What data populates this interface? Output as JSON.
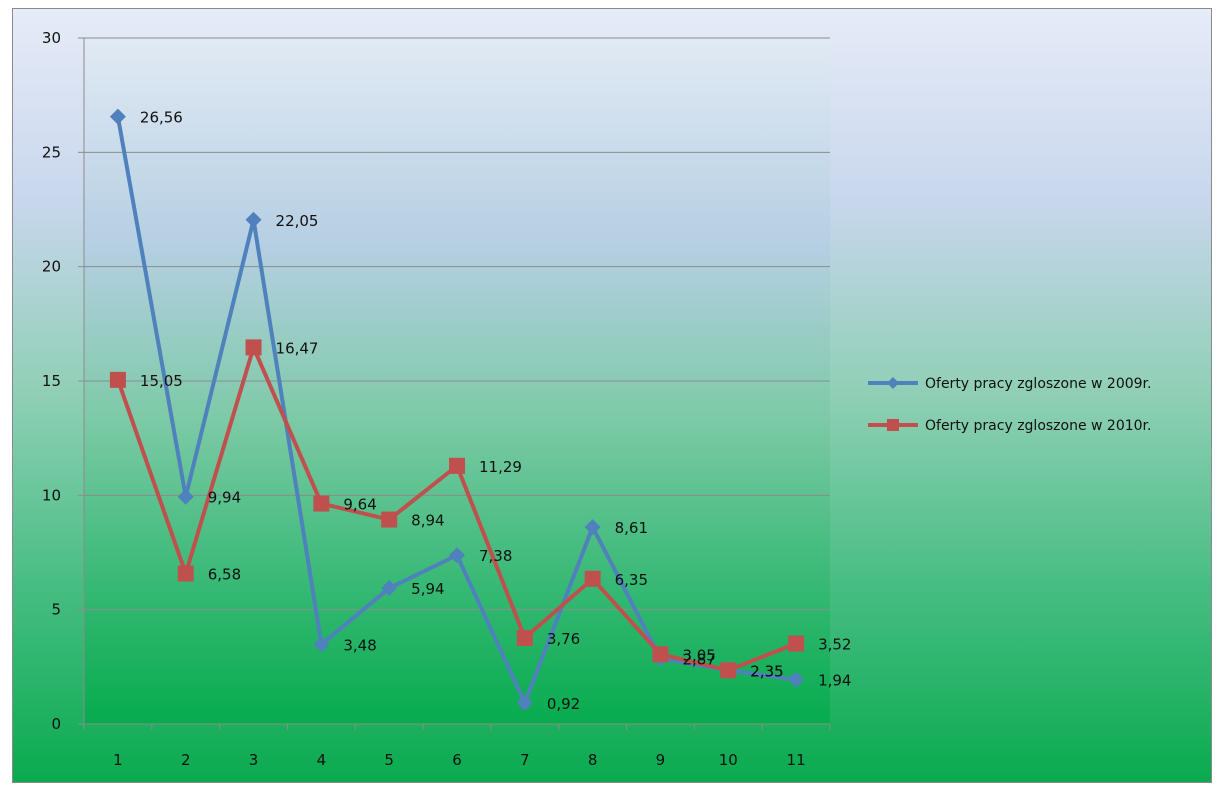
{
  "chart_data": {
    "type": "line",
    "title": "",
    "xlabel": "",
    "ylabel": "",
    "categories": [
      "1",
      "2",
      "3",
      "4",
      "5",
      "6",
      "7",
      "8",
      "9",
      "10",
      "11"
    ],
    "ylim": [
      0,
      30
    ],
    "yticks": [
      "0",
      "5",
      "10",
      "15",
      "20",
      "25",
      "30"
    ],
    "grid": true,
    "legend_position": "right",
    "series": [
      {
        "name": "Oferty pracy zgloszone w 2009r.",
        "color": "#4f81bd",
        "marker": "diamond",
        "values": [
          26.56,
          9.94,
          22.05,
          3.48,
          5.94,
          7.38,
          0.92,
          8.61,
          2.87,
          2.35,
          1.94
        ],
        "labels": [
          "26,56",
          "9,94",
          "22,05",
          "3,48",
          "5,94",
          "7,38",
          "0,92",
          "8,61",
          "2,87",
          "2,35",
          "1,94"
        ]
      },
      {
        "name": "Oferty pracy zgloszone w 2010r.",
        "color": "#c0504d",
        "marker": "square",
        "values": [
          15.05,
          6.58,
          16.47,
          9.64,
          8.94,
          11.29,
          3.76,
          6.35,
          3.05,
          2.35,
          3.52
        ],
        "labels": [
          "15,05",
          "6,58",
          "16,47",
          "9,64",
          "8,94",
          "11,29",
          "3,76",
          "6,35",
          "3,05",
          "2,35",
          "3,52"
        ]
      }
    ]
  }
}
